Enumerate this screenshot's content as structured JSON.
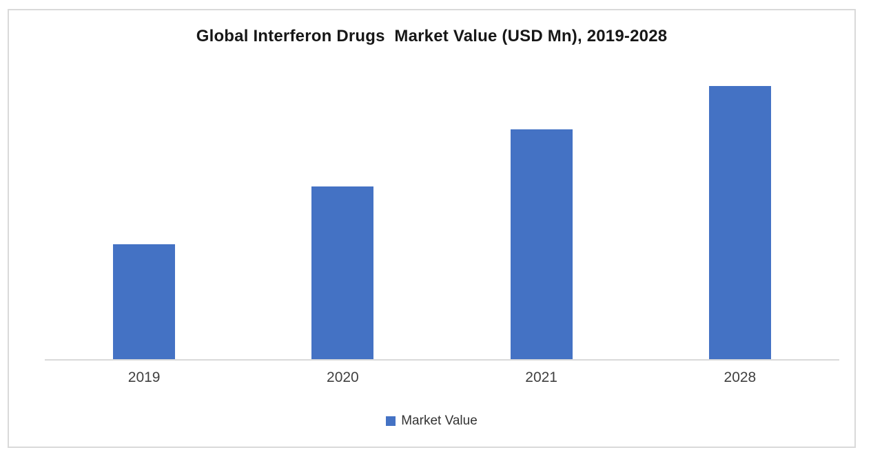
{
  "chart": {
    "title": "Global Interferon Drugs  Market Value (USD Mn), 2019-2028",
    "legend": {
      "label": "Market Value",
      "marker_color": "#4472C4"
    }
  },
  "chart_data": {
    "type": "bar",
    "title": "Global Interferon Drugs  Market Value (USD Mn), 2019-2028",
    "categories": [
      "2019",
      "2020",
      "2021",
      "2028"
    ],
    "series": [
      {
        "name": "Market Value",
        "values": [
          167,
          251,
          334,
          397
        ]
      }
    ],
    "xlabel": "",
    "ylabel": "",
    "ylim": [
      0,
      440
    ],
    "y_axis_labeled": false,
    "values_are_estimated_relative_units": true,
    "grid": false,
    "legend_position": "bottom",
    "bar_color": "#4472C4",
    "axis_color": "#D9D9D9",
    "frame_border_color": "#D9D9D9",
    "tick_label_color": "#404040",
    "title_color": "#171717"
  }
}
